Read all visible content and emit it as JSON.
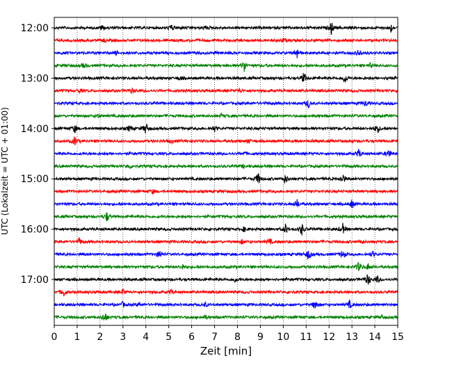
{
  "chart_data": {
    "type": "line",
    "title": "",
    "xlabel": "Zeit  [min]",
    "ylabel": "UTC (Lokalzeit = UTC + 01:00)",
    "xlim": [
      0,
      15
    ],
    "x_ticks": [
      "0",
      "1",
      "2",
      "3",
      "4",
      "5",
      "6",
      "7",
      "8",
      "9",
      "10",
      "11",
      "12",
      "13",
      "14",
      "15"
    ],
    "y_tick_labels": [
      "12:00",
      "13:00",
      "14:00",
      "15:00",
      "16:00",
      "17:00"
    ],
    "grid": "vertical dotted",
    "trace_colors": [
      "#000000",
      "#ff0000",
      "#0000ff",
      "#008000"
    ],
    "traces": [
      {
        "start": "12:00",
        "events": [
          [
            2.1,
            0.4
          ],
          [
            5.1,
            0.5
          ],
          [
            6.6,
            0.3
          ],
          [
            12.1,
            1.0
          ],
          [
            14.7,
            0.6
          ]
        ]
      },
      {
        "start": "12:15",
        "events": [
          [
            2.2,
            0.3
          ],
          [
            10.0,
            0.3
          ]
        ]
      },
      {
        "start": "12:30",
        "events": [
          [
            2.7,
            0.3
          ],
          [
            10.6,
            0.9
          ],
          [
            13.3,
            0.6
          ]
        ]
      },
      {
        "start": "12:45",
        "events": [
          [
            1.3,
            0.4
          ],
          [
            8.3,
            1.0
          ],
          [
            13.8,
            0.3
          ]
        ]
      },
      {
        "start": "13:00",
        "events": [
          [
            5.5,
            0.3
          ],
          [
            10.9,
            0.9
          ],
          [
            12.7,
            0.8
          ],
          [
            14.6,
            0.3
          ]
        ]
      },
      {
        "start": "13:15",
        "events": [
          [
            1.1,
            0.3
          ],
          [
            3.4,
            0.3
          ],
          [
            8.1,
            0.3
          ]
        ]
      },
      {
        "start": "13:30",
        "events": [
          [
            11.1,
            0.7
          ],
          [
            13.6,
            0.5
          ]
        ]
      },
      {
        "start": "13:45",
        "events": [
          [
            1.9,
            0.3
          ],
          [
            7.3,
            0.3
          ]
        ]
      },
      {
        "start": "14:00",
        "events": [
          [
            0.9,
            0.6
          ],
          [
            3.3,
            0.5
          ],
          [
            4.0,
            1.0
          ],
          [
            7.0,
            0.4
          ],
          [
            14.1,
            0.9
          ]
        ]
      },
      {
        "start": "14:15",
        "events": [
          [
            0.9,
            0.8
          ],
          [
            5.1,
            0.3
          ],
          [
            8.5,
            0.3
          ]
        ]
      },
      {
        "start": "14:30",
        "events": [
          [
            8.3,
            0.3
          ],
          [
            13.3,
            0.7
          ],
          [
            14.6,
            0.8
          ]
        ]
      },
      {
        "start": "14:45",
        "events": [
          [
            3.3,
            0.3
          ],
          [
            8.3,
            0.3
          ]
        ]
      },
      {
        "start": "15:00",
        "events": [
          [
            8.9,
            1.0
          ],
          [
            10.1,
            0.8
          ],
          [
            12.6,
            0.9
          ]
        ]
      },
      {
        "start": "15:15",
        "events": [
          [
            4.3,
            0.3
          ]
        ]
      },
      {
        "start": "15:30",
        "events": [
          [
            10.6,
            0.7
          ],
          [
            13.0,
            0.7
          ]
        ]
      },
      {
        "start": "15:45",
        "events": [
          [
            2.3,
            0.8
          ]
        ]
      },
      {
        "start": "16:00",
        "events": [
          [
            8.3,
            0.4
          ],
          [
            10.1,
            0.8
          ],
          [
            10.8,
            1.0
          ],
          [
            12.6,
            0.8
          ]
        ]
      },
      {
        "start": "16:15",
        "events": [
          [
            1.1,
            0.6
          ],
          [
            8.2,
            0.3
          ],
          [
            9.4,
            0.5
          ],
          [
            13.4,
            0.4
          ]
        ]
      },
      {
        "start": "16:30",
        "events": [
          [
            4.6,
            0.7
          ],
          [
            11.1,
            0.9
          ],
          [
            12.6,
            0.8
          ],
          [
            13.9,
            0.4
          ]
        ]
      },
      {
        "start": "16:45",
        "events": [
          [
            5.6,
            0.5
          ],
          [
            13.3,
            0.8
          ],
          [
            13.7,
            0.5
          ]
        ]
      },
      {
        "start": "17:00",
        "events": [
          [
            7.9,
            0.3
          ],
          [
            13.7,
            1.0
          ],
          [
            14.1,
            0.6
          ]
        ]
      },
      {
        "start": "17:15",
        "events": [
          [
            0.4,
            0.8
          ],
          [
            3.0,
            0.4
          ],
          [
            5.1,
            0.4
          ]
        ]
      },
      {
        "start": "17:30",
        "events": [
          [
            3.0,
            0.4
          ],
          [
            3.7,
            0.3
          ],
          [
            6.6,
            0.3
          ],
          [
            11.4,
            0.9
          ],
          [
            12.9,
            0.6
          ]
        ]
      },
      {
        "start": "17:45",
        "events": [
          [
            2.2,
            1.0
          ],
          [
            6.6,
            0.3
          ],
          [
            14.3,
            0.3
          ]
        ]
      }
    ]
  }
}
